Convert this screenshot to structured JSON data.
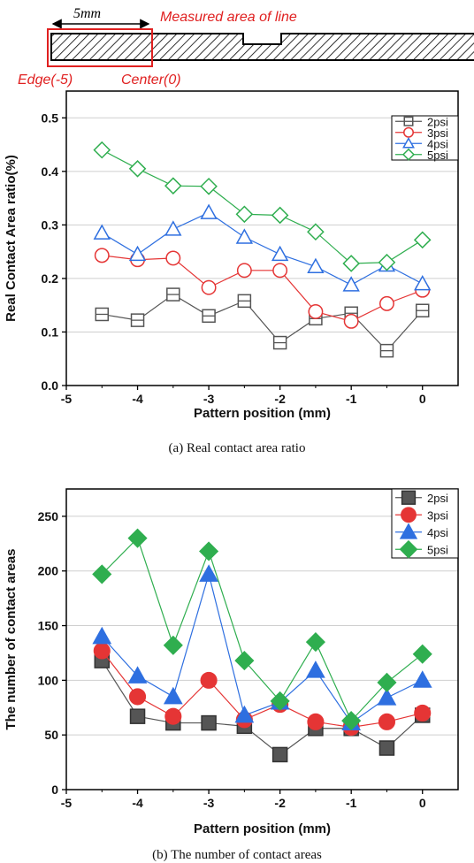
{
  "diagram": {
    "dimension_label": "5mm",
    "measured_label": "Measured area of line",
    "edge_label": "Edge(-5)",
    "center_label": "Center(0)",
    "highlight_color": "#e02020"
  },
  "series_colors": {
    "2psi": "#555555",
    "3psi": "#e53535",
    "4psi": "#2e6fe0",
    "5psi": "#2fae4f"
  },
  "chart_data": [
    {
      "type": "line",
      "caption": "(a)  Real contact area ratio",
      "xlabel": "Pattern position (mm)",
      "ylabel": "Real Contact Area ratio(%)",
      "xlim": [
        -5,
        0.5
      ],
      "ylim": [
        0,
        0.55
      ],
      "xticks": [
        -5,
        -4,
        -3,
        -2,
        -1,
        0
      ],
      "yticks": [
        0.0,
        0.1,
        0.2,
        0.3,
        0.4,
        0.5
      ],
      "ytick_labels": [
        "0.0",
        "0.1",
        "0.2",
        "0.3",
        "0.4",
        "0.5"
      ],
      "grid": true,
      "legend": "top-right",
      "marker_fill": "hollow",
      "x": [
        -4.5,
        -4,
        -3.5,
        -3,
        -2.5,
        -2,
        -1.5,
        -1,
        -0.5,
        0
      ],
      "series": [
        {
          "name": "2psi",
          "marker": "square",
          "values": [
            0.133,
            0.122,
            0.17,
            0.13,
            0.158,
            0.08,
            0.125,
            0.135,
            0.065,
            0.14
          ]
        },
        {
          "name": "3psi",
          "marker": "circle",
          "values": [
            0.243,
            0.235,
            0.238,
            0.183,
            0.215,
            0.215,
            0.138,
            0.12,
            0.153,
            0.178
          ]
        },
        {
          "name": "4psi",
          "marker": "triangle",
          "values": [
            0.285,
            0.245,
            0.292,
            0.323,
            0.277,
            0.245,
            0.222,
            0.188,
            0.225,
            0.19
          ]
        },
        {
          "name": "5psi",
          "marker": "diamond",
          "values": [
            0.44,
            0.405,
            0.373,
            0.372,
            0.32,
            0.318,
            0.287,
            0.228,
            0.23,
            0.272
          ]
        }
      ]
    },
    {
      "type": "line",
      "caption": "(b)  The number of contact areas",
      "xlabel": "Pattern position (mm)",
      "ylabel": "The number of contact areas",
      "xlim": [
        -5,
        0.5
      ],
      "ylim": [
        0,
        275
      ],
      "xticks": [
        -5,
        -4,
        -3,
        -2,
        -1,
        0
      ],
      "yticks": [
        0,
        50,
        100,
        150,
        200,
        250
      ],
      "ytick_labels": [
        "0",
        "50",
        "100",
        "150",
        "200",
        "250"
      ],
      "grid": true,
      "legend": "top-right",
      "marker_fill": "solid",
      "x": [
        -4.5,
        -4,
        -3.5,
        -3,
        -2.5,
        -2,
        -1.5,
        -1,
        -0.5,
        0
      ],
      "series": [
        {
          "name": "2psi",
          "marker": "square",
          "values": [
            118,
            67,
            61,
            61,
            58,
            32,
            56,
            56,
            38,
            68
          ]
        },
        {
          "name": "3psi",
          "marker": "circle",
          "values": [
            127,
            85,
            67,
            100,
            64,
            78,
            62,
            57,
            62,
            70
          ]
        },
        {
          "name": "4psi",
          "marker": "triangle",
          "values": [
            140,
            104,
            85,
            197,
            68,
            80,
            109,
            61,
            84,
            100
          ]
        },
        {
          "name": "5psi",
          "marker": "diamond",
          "values": [
            197,
            230,
            132,
            218,
            118,
            81,
            135,
            63,
            98,
            124
          ]
        }
      ]
    }
  ]
}
